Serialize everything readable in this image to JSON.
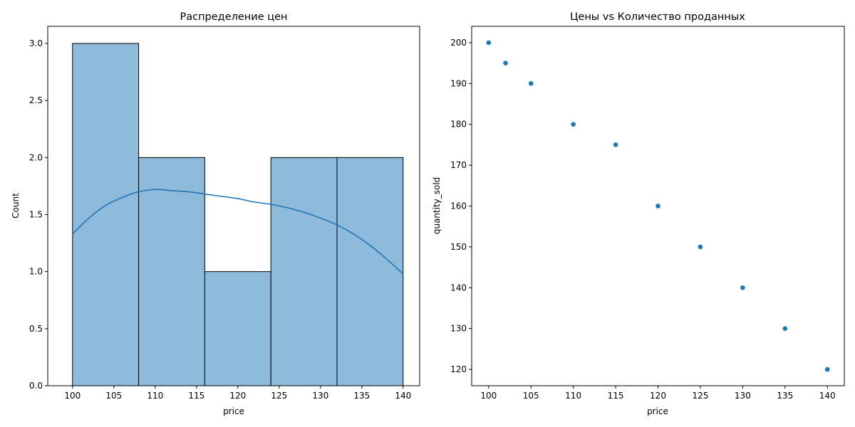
{
  "chart_data": [
    {
      "type": "bar",
      "title": "Распределение цен",
      "xlabel": "price",
      "ylabel": "Count",
      "bins": [
        [
          100,
          108
        ],
        [
          108,
          116
        ],
        [
          116,
          124
        ],
        [
          124,
          132
        ],
        [
          132,
          140
        ]
      ],
      "values": [
        3,
        2,
        1,
        2,
        2
      ],
      "kde": {
        "x": [
          100,
          102,
          104,
          106,
          108,
          110,
          112,
          114,
          116,
          118,
          120,
          122,
          124,
          126,
          128,
          130,
          132,
          134,
          136,
          138,
          140
        ],
        "y": [
          1.33,
          1.47,
          1.58,
          1.65,
          1.7,
          1.72,
          1.71,
          1.7,
          1.68,
          1.66,
          1.64,
          1.61,
          1.59,
          1.56,
          1.52,
          1.47,
          1.41,
          1.33,
          1.23,
          1.11,
          0.98
        ]
      },
      "xlim": [
        97,
        142
      ],
      "ylim": [
        0,
        3.15
      ],
      "xticks": [
        100,
        105,
        110,
        115,
        120,
        125,
        130,
        135,
        140
      ],
      "xtick_labels": [
        "100",
        "105",
        "110",
        "115",
        "120",
        "125",
        "130",
        "135",
        "140"
      ],
      "yticks": [
        0,
        0.5,
        1.0,
        1.5,
        2.0,
        2.5,
        3.0
      ],
      "ytick_labels": [
        "0.0",
        "0.5",
        "1.0",
        "1.5",
        "2.0",
        "2.5",
        "3.0"
      ],
      "grid": false,
      "colors": {
        "bar_fill": "#8ebadb",
        "bar_edge": "#000000",
        "kde_line": "#1f77b4",
        "axes": "#000000"
      }
    },
    {
      "type": "scatter",
      "title": "Цены vs Количество проданных",
      "xlabel": "price",
      "ylabel": "quantity_sold",
      "x": [
        100,
        102,
        105,
        110,
        115,
        120,
        125,
        130,
        135,
        140
      ],
      "y": [
        200,
        195,
        190,
        180,
        175,
        160,
        150,
        140,
        130,
        120
      ],
      "xlim": [
        98,
        142
      ],
      "ylim": [
        116,
        204
      ],
      "xticks": [
        100,
        105,
        110,
        115,
        120,
        125,
        130,
        135,
        140
      ],
      "xtick_labels": [
        "100",
        "105",
        "110",
        "115",
        "120",
        "125",
        "130",
        "135",
        "140"
      ],
      "yticks": [
        120,
        130,
        140,
        150,
        160,
        170,
        180,
        190,
        200
      ],
      "ytick_labels": [
        "120",
        "130",
        "140",
        "150",
        "160",
        "170",
        "180",
        "190",
        "200"
      ],
      "grid": false,
      "colors": {
        "point": "#1f77b4",
        "axes": "#000000"
      }
    }
  ]
}
